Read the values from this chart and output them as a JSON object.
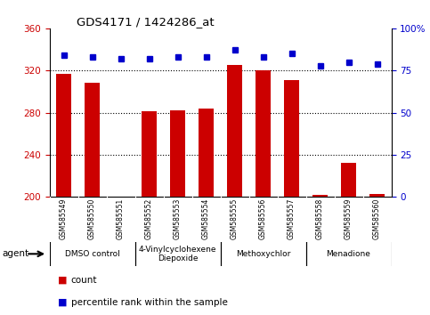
{
  "title": "GDS4171 / 1424286_at",
  "samples": [
    "GSM585549",
    "GSM585550",
    "GSM585551",
    "GSM585552",
    "GSM585553",
    "GSM585554",
    "GSM585555",
    "GSM585556",
    "GSM585557",
    "GSM585558",
    "GSM585559",
    "GSM585560"
  ],
  "counts": [
    317,
    308,
    200,
    281,
    282,
    284,
    325,
    320,
    311,
    202,
    232,
    203
  ],
  "percentiles": [
    84,
    83,
    82,
    82,
    83,
    83,
    87,
    83,
    85,
    78,
    80,
    79
  ],
  "ymin": 200,
  "ymax": 360,
  "yticks": [
    200,
    240,
    280,
    320,
    360
  ],
  "y2ticks": [
    0,
    25,
    50,
    75,
    100
  ],
  "bar_color": "#cc0000",
  "dot_color": "#0000cc",
  "agent_groups": [
    {
      "label": "DMSO control",
      "start": 0,
      "end": 2
    },
    {
      "label": "4-Vinylcyclohexene\nDiepoxide",
      "start": 3,
      "end": 5
    },
    {
      "label": "Methoxychlor",
      "start": 6,
      "end": 8
    },
    {
      "label": "Menadione",
      "start": 9,
      "end": 11
    }
  ],
  "left_tick_color": "#cc0000",
  "right_tick_color": "#0000cc",
  "agent_bg": "#90ee90",
  "sample_bg": "#d3d3d3"
}
